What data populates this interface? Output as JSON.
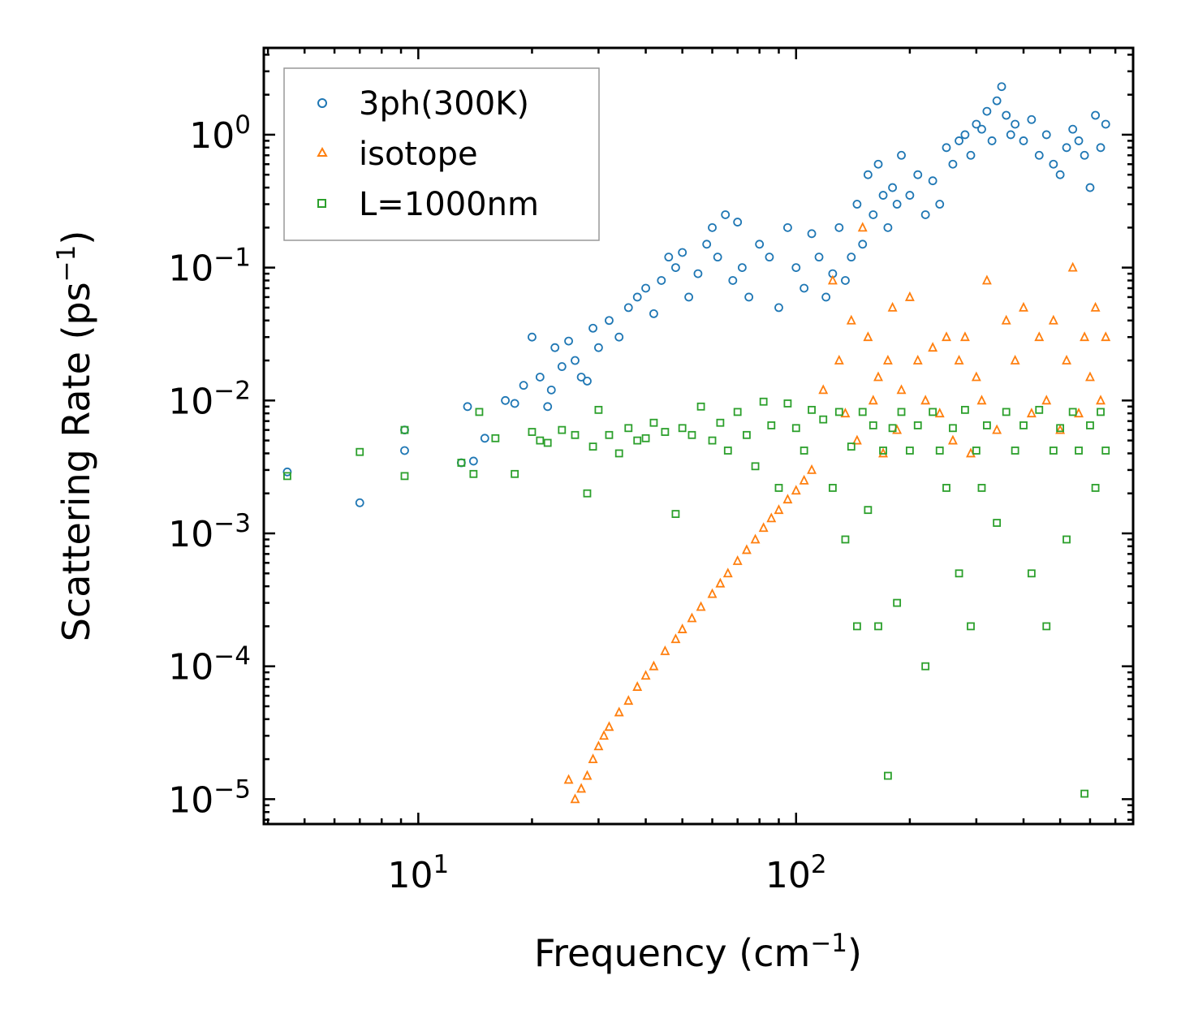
{
  "chart_data": {
    "type": "scatter",
    "title": "",
    "xlabel": "Frequency (cm",
    "xlabel_sup": "−1",
    "xlabel_end": ")",
    "ylabel": "Scattering Rate (ps",
    "ylabel_sup": "−1",
    "ylabel_end": ")",
    "xscale": "log",
    "yscale": "log",
    "xlim": [
      3.9,
      780
    ],
    "ylim": [
      6.5e-06,
      4.5
    ],
    "xticks": [
      {
        "value": 10,
        "base": "10",
        "exp": "1"
      },
      {
        "value": 100,
        "base": "10",
        "exp": "2"
      }
    ],
    "yticks": [
      {
        "value": 1,
        "base": "10",
        "exp": "0"
      },
      {
        "value": 0.1,
        "base": "10",
        "exp": "−1"
      },
      {
        "value": 0.01,
        "base": "10",
        "exp": "−2"
      },
      {
        "value": 0.001,
        "base": "10",
        "exp": "−3"
      },
      {
        "value": 0.0001,
        "base": "10",
        "exp": "−4"
      },
      {
        "value": 1e-05,
        "base": "10",
        "exp": "−5"
      }
    ],
    "legend_position": "top-left",
    "series": [
      {
        "name": "3ph(300K)",
        "marker": "circle",
        "color": "#1f77b4",
        "x": [
          4.5,
          7.0,
          9.2,
          9.2,
          13.0,
          13.5,
          14.0,
          15.0,
          17.0,
          18.0,
          19.0,
          20.0,
          21.0,
          22.0,
          22.5,
          23.0,
          24.0,
          25.0,
          26.0,
          27.0,
          28.0,
          29.0,
          30.0,
          32.0,
          34.0,
          36.0,
          38.0,
          40.0,
          42.0,
          44.0,
          46.0,
          48.0,
          50.0,
          52.0,
          55.0,
          58.0,
          60.0,
          62.0,
          65.0,
          68.0,
          70.0,
          72.0,
          75.0,
          80.0,
          85.0,
          90.0,
          95.0,
          100.0,
          105.0,
          110.0,
          115.0,
          120.0,
          125.0,
          130.0,
          135.0,
          140.0,
          145.0,
          150.0,
          155.0,
          160.0,
          165.0,
          170.0,
          175.0,
          180.0,
          185.0,
          190.0,
          200.0,
          210.0,
          220.0,
          230.0,
          240.0,
          250.0,
          260.0,
          270.0,
          280.0,
          290.0,
          300.0,
          310.0,
          320.0,
          330.0,
          340.0,
          350.0,
          360.0,
          370.0,
          380.0,
          400.0,
          420.0,
          440.0,
          460.0,
          480.0,
          500.0,
          520.0,
          540.0,
          560.0,
          580.0,
          600.0,
          620.0,
          640.0,
          660.0
        ],
        "y": [
          0.0029,
          0.0017,
          0.0042,
          0.006,
          0.0034,
          0.009,
          0.0035,
          0.0052,
          0.01,
          0.0095,
          0.013,
          0.03,
          0.015,
          0.009,
          0.012,
          0.025,
          0.018,
          0.028,
          0.02,
          0.015,
          0.014,
          0.035,
          0.025,
          0.04,
          0.03,
          0.05,
          0.06,
          0.07,
          0.045,
          0.08,
          0.12,
          0.1,
          0.13,
          0.06,
          0.09,
          0.15,
          0.2,
          0.12,
          0.25,
          0.08,
          0.22,
          0.1,
          0.06,
          0.15,
          0.12,
          0.05,
          0.2,
          0.1,
          0.07,
          0.18,
          0.12,
          0.06,
          0.09,
          0.2,
          0.08,
          0.12,
          0.3,
          0.15,
          0.5,
          0.25,
          0.6,
          0.35,
          0.2,
          0.4,
          0.3,
          0.7,
          0.35,
          0.5,
          0.25,
          0.45,
          0.3,
          0.8,
          0.6,
          0.9,
          1.0,
          0.7,
          1.2,
          1.1,
          1.5,
          0.9,
          1.8,
          2.3,
          1.4,
          1.0,
          1.2,
          0.9,
          1.3,
          0.7,
          1.0,
          0.6,
          0.5,
          0.8,
          1.1,
          0.9,
          0.7,
          0.4,
          1.4,
          0.8,
          1.2
        ]
      },
      {
        "name": "isotope",
        "marker": "triangle",
        "color": "#ff7f0e",
        "x": [
          25.0,
          26.0,
          27.0,
          28.0,
          29.0,
          30.0,
          31.0,
          32.0,
          34.0,
          36.0,
          38.0,
          40.0,
          42.0,
          45.0,
          48.0,
          50.0,
          53.0,
          56.0,
          60.0,
          63.0,
          66.0,
          70.0,
          74.0,
          78.0,
          82.0,
          86.0,
          90.0,
          95.0,
          100.0,
          105.0,
          110.0,
          118.0,
          125.0,
          130.0,
          135.0,
          140.0,
          145.0,
          150.0,
          155.0,
          160.0,
          165.0,
          170.0,
          175.0,
          180.0,
          185.0,
          190.0,
          200.0,
          210.0,
          220.0,
          230.0,
          240.0,
          250.0,
          260.0,
          270.0,
          280.0,
          290.0,
          300.0,
          310.0,
          320.0,
          340.0,
          360.0,
          380.0,
          400.0,
          420.0,
          440.0,
          460.0,
          480.0,
          500.0,
          520.0,
          540.0,
          560.0,
          580.0,
          600.0,
          620.0,
          640.0,
          660.0
        ],
        "y": [
          1.4e-05,
          1e-05,
          1.2e-05,
          1.5e-05,
          2e-05,
          2.5e-05,
          3e-05,
          3.5e-05,
          4.5e-05,
          5.5e-05,
          7e-05,
          8.5e-05,
          0.0001,
          0.00013,
          0.00016,
          0.00019,
          0.00023,
          0.00028,
          0.00035,
          0.00042,
          0.0005,
          0.00062,
          0.00075,
          0.0009,
          0.0011,
          0.0013,
          0.0015,
          0.0018,
          0.0021,
          0.0025,
          0.003,
          0.012,
          0.08,
          0.02,
          0.008,
          0.04,
          0.005,
          0.2,
          0.03,
          0.01,
          0.015,
          0.004,
          0.02,
          0.05,
          0.006,
          0.012,
          0.06,
          0.02,
          0.01,
          0.025,
          0.008,
          0.03,
          0.005,
          0.02,
          0.03,
          0.004,
          0.015,
          0.01,
          0.08,
          0.006,
          0.04,
          0.02,
          0.05,
          0.008,
          0.03,
          0.01,
          0.04,
          0.006,
          0.02,
          0.1,
          0.008,
          0.03,
          0.015,
          0.05,
          0.01,
          0.03
        ]
      },
      {
        "name": "L=1000nm",
        "marker": "square",
        "color": "#2ca02c",
        "x": [
          4.5,
          7.0,
          9.2,
          9.2,
          13.0,
          14.0,
          14.5,
          16.0,
          18.0,
          20.0,
          21.0,
          22.0,
          24.0,
          26.0,
          28.0,
          29.0,
          30.0,
          32.0,
          34.0,
          36.0,
          38.0,
          40.0,
          42.0,
          45.0,
          48.0,
          50.0,
          53.0,
          56.0,
          60.0,
          63.0,
          66.0,
          70.0,
          74.0,
          78.0,
          82.0,
          86.0,
          90.0,
          95.0,
          100.0,
          105.0,
          110.0,
          118.0,
          125.0,
          130.0,
          135.0,
          140.0,
          145.0,
          150.0,
          155.0,
          160.0,
          165.0,
          170.0,
          175.0,
          180.0,
          185.0,
          190.0,
          200.0,
          210.0,
          220.0,
          230.0,
          240.0,
          250.0,
          260.0,
          270.0,
          280.0,
          290.0,
          300.0,
          310.0,
          320.0,
          340.0,
          360.0,
          380.0,
          400.0,
          420.0,
          440.0,
          460.0,
          480.0,
          500.0,
          520.0,
          540.0,
          560.0,
          580.0,
          600.0,
          620.0,
          640.0,
          660.0
        ],
        "y": [
          0.0027,
          0.0041,
          0.0027,
          0.006,
          0.0034,
          0.0028,
          0.0082,
          0.0052,
          0.0028,
          0.0058,
          0.005,
          0.0048,
          0.006,
          0.0055,
          0.002,
          0.0045,
          0.0085,
          0.0055,
          0.004,
          0.0062,
          0.005,
          0.0052,
          0.0068,
          0.0058,
          0.0014,
          0.0062,
          0.0055,
          0.009,
          0.005,
          0.0068,
          0.0042,
          0.0082,
          0.0055,
          0.0032,
          0.0098,
          0.0065,
          0.0022,
          0.0095,
          0.0062,
          0.0042,
          0.0085,
          0.0072,
          0.0022,
          0.0082,
          0.0009,
          0.0045,
          0.0002,
          0.0082,
          0.0015,
          0.0065,
          0.0002,
          0.0042,
          1.5e-05,
          0.0062,
          0.0003,
          0.0082,
          0.0042,
          0.0065,
          0.0001,
          0.0082,
          0.0042,
          0.0022,
          0.0062,
          0.0005,
          0.0085,
          0.0002,
          0.0042,
          0.0022,
          0.0065,
          0.0012,
          0.0082,
          0.0042,
          0.0065,
          0.0005,
          0.0085,
          0.0002,
          0.0042,
          0.0062,
          0.0009,
          0.0082,
          0.0042,
          1.1e-05,
          0.0065,
          0.0022,
          0.0082,
          0.0042
        ]
      }
    ]
  }
}
